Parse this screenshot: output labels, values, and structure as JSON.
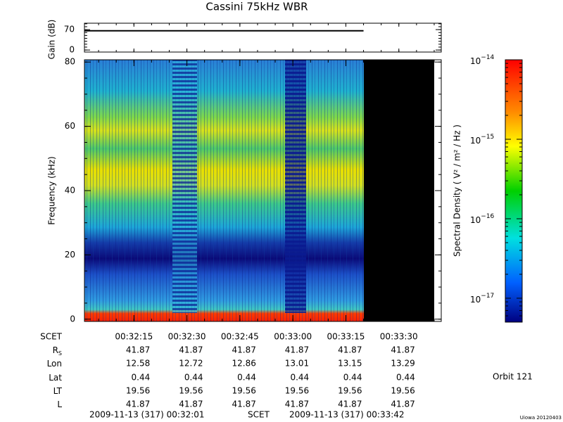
{
  "chart_data": {
    "type": "spectrogram",
    "title": "Cassini 75kHz WBR",
    "xlim": [
      1,
      102
    ],
    "xticks": [
      {
        "value": 15,
        "label": "00:32:15"
      },
      {
        "value": 30,
        "label": "00:32:30"
      },
      {
        "value": 45,
        "label": "00:32:45"
      },
      {
        "value": 60,
        "label": "00:33:00"
      },
      {
        "value": 75,
        "label": "00:33:15"
      },
      {
        "value": 90,
        "label": "00:33:30"
      }
    ],
    "gain_panel": {
      "ylabel": "Gain (dB)",
      "ylim": [
        -7,
        92
      ],
      "yticks": [
        0,
        70
      ],
      "series": [
        {
          "x": [
            1,
            80
          ],
          "values": [
            66,
            66
          ],
          "color": "#000000"
        }
      ]
    },
    "spectrogram": {
      "ylabel": "Frequency (kHz)",
      "ylim": [
        -0.7,
        80.7
      ],
      "yticks": [
        0,
        20,
        40,
        60,
        80
      ]
    },
    "colorbar": {
      "label": "Spectral Density ( V² / m² / Hz )",
      "log": true,
      "ylim": [
        5e-18,
        1e-14
      ],
      "yticks": [
        {
          "value": 1e-14,
          "label": "10",
          "exponent": "−14"
        },
        {
          "value": 1e-15,
          "label": "10",
          "exponent": "−15"
        },
        {
          "value": 1e-16,
          "label": "10",
          "exponent": "−16"
        },
        {
          "value": 1e-17,
          "label": "10",
          "exponent": "−17"
        }
      ]
    },
    "ephemeris": {
      "scet_label": "SCET",
      "rows": [
        {
          "label": "R",
          "subscript": "S",
          "values": [
            41.87,
            41.87,
            41.87,
            41.87,
            41.87,
            41.87
          ]
        },
        {
          "label": "Lon",
          "values": [
            12.58,
            12.72,
            12.86,
            13.01,
            13.15,
            13.29
          ]
        },
        {
          "label": "Lat",
          "values": [
            0.44,
            0.44,
            0.44,
            0.44,
            0.44,
            0.44
          ]
        },
        {
          "label": "LT",
          "values": [
            19.56,
            19.56,
            19.56,
            19.56,
            19.56,
            19.56
          ]
        },
        {
          "label": "L",
          "values": [
            41.87,
            41.87,
            41.87,
            41.87,
            41.87,
            41.87
          ]
        }
      ]
    },
    "footer": {
      "start": "2009-11-13 (317) 00:32:01",
      "scet": "SCET",
      "end": "2009-11-13 (317) 00:33:42",
      "orbit": "Orbit 121",
      "credit": "Uiowa 20120403"
    }
  }
}
